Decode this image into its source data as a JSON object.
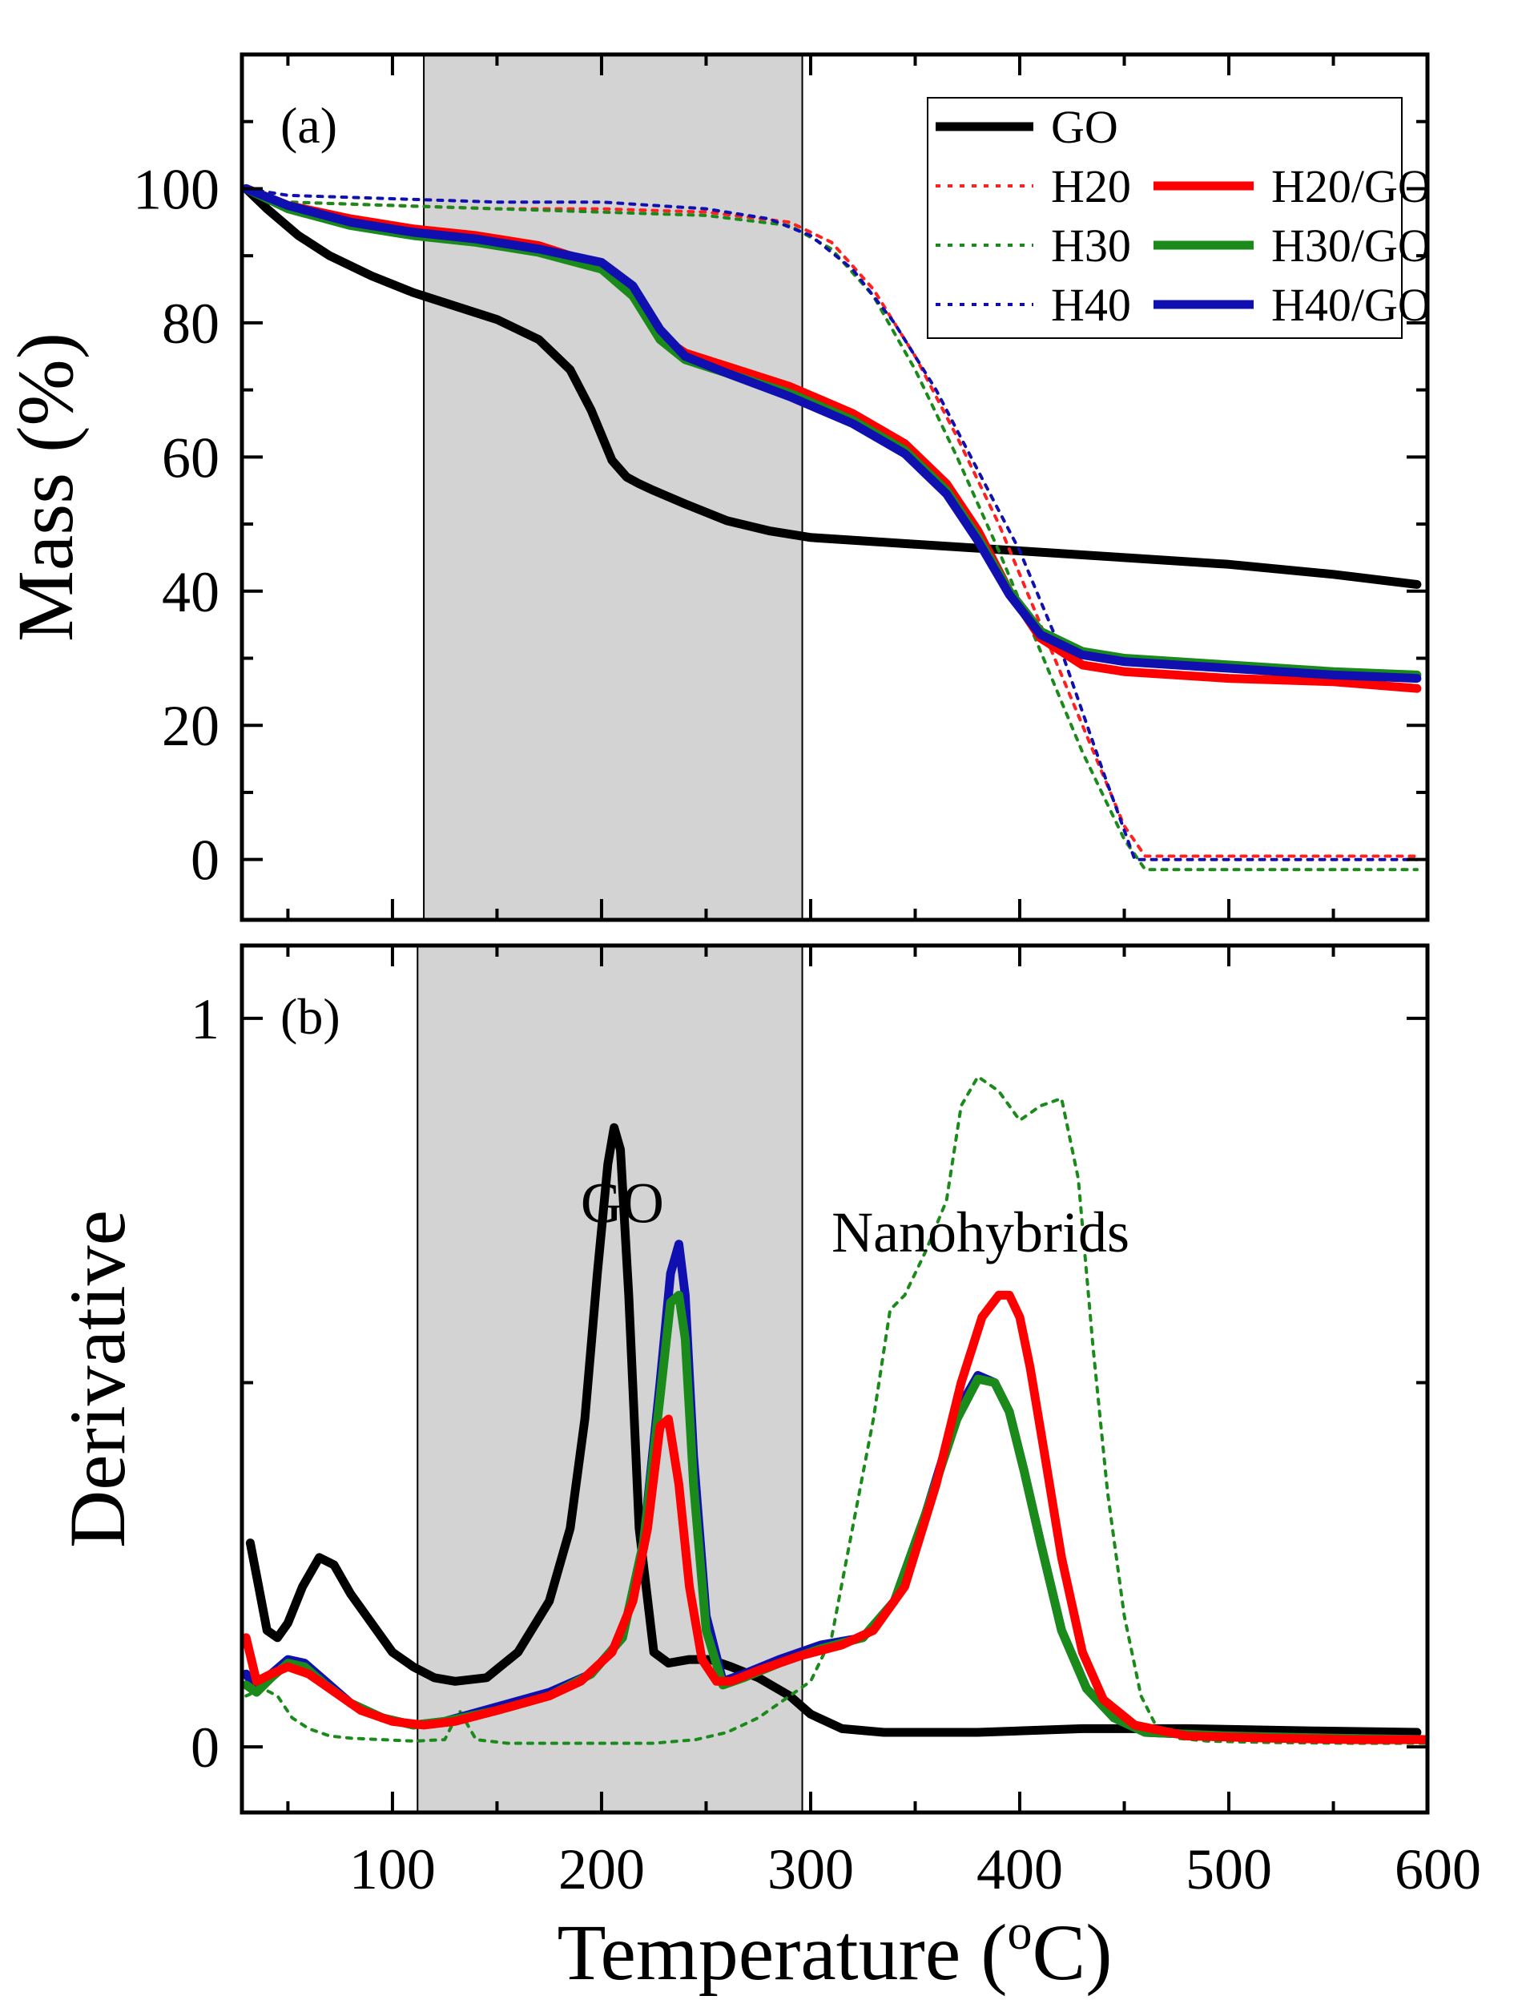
{
  "chart_data": [
    {
      "panel": "(a)",
      "type": "line",
      "xlabel": "Temperature (°C)",
      "ylabel": "Mass (%)",
      "xlim": [
        28,
        595
      ],
      "ylim": [
        -9,
        120
      ],
      "xticks": [
        100,
        200,
        300,
        400,
        500,
        600
      ],
      "yticks": [
        0,
        20,
        40,
        60,
        80,
        100
      ],
      "ytick_labels": [
        "0",
        "20",
        "40",
        "60",
        "80",
        "100"
      ],
      "grid": false,
      "legend_position": "top-right",
      "shaded_region": [
        115,
        296
      ],
      "series": [
        {
          "name": "GO",
          "color": "#000000",
          "style": "solid",
          "x": [
            30,
            40,
            55,
            70,
            90,
            110,
            130,
            150,
            170,
            185,
            195,
            205,
            212,
            218,
            225,
            240,
            260,
            280,
            300,
            350,
            400,
            450,
            500,
            550,
            590
          ],
          "y": [
            100,
            97,
            93,
            90,
            87,
            84.5,
            82.5,
            80.5,
            77.5,
            73,
            67,
            59.5,
            57,
            56,
            55,
            53,
            50.5,
            49,
            48,
            47,
            46,
            45,
            44,
            42.5,
            41
          ]
        },
        {
          "name": "H20",
          "color": "#ff2020",
          "style": "dotted",
          "x": [
            30,
            50,
            100,
            150,
            200,
            250,
            290,
            310,
            330,
            350,
            370,
            390,
            410,
            430,
            450,
            460,
            500,
            550,
            590
          ],
          "y": [
            100,
            98,
            97.5,
            97,
            97,
            96.5,
            95,
            92,
            85,
            75,
            63,
            50,
            35,
            20,
            5,
            0.5,
            0.5,
            0.5,
            0.5
          ]
        },
        {
          "name": "H30",
          "color": "#1a8a1a",
          "style": "dotted",
          "x": [
            30,
            50,
            100,
            150,
            200,
            250,
            290,
            310,
            330,
            350,
            370,
            390,
            410,
            430,
            450,
            460,
            500,
            550,
            590
          ],
          "y": [
            100,
            98,
            97.5,
            97,
            96.5,
            96,
            94.5,
            91,
            84,
            73,
            60,
            46,
            31,
            16,
            3,
            -1.5,
            -1.5,
            -1.5,
            -1.5
          ]
        },
        {
          "name": "H40",
          "color": "#1010b0",
          "style": "dotted",
          "x": [
            30,
            50,
            100,
            150,
            200,
            250,
            280,
            300,
            320,
            340,
            360,
            380,
            400,
            420,
            440,
            455,
            500,
            550,
            590
          ],
          "y": [
            100,
            99,
            98.5,
            98,
            98,
            97,
            95.5,
            93,
            88,
            80,
            70,
            58,
            46,
            31,
            13,
            0,
            0,
            0,
            0
          ]
        },
        {
          "name": "H20/GO",
          "color": "#ff0000",
          "style": "solid",
          "x": [
            30,
            50,
            80,
            110,
            140,
            170,
            200,
            215,
            228,
            240,
            260,
            290,
            320,
            345,
            365,
            380,
            395,
            410,
            430,
            450,
            500,
            550,
            590
          ],
          "y": [
            100,
            97.5,
            95.5,
            94,
            93,
            91.5,
            88.5,
            84,
            78,
            75.5,
            73.5,
            70.5,
            66.5,
            62,
            56,
            49,
            40,
            33,
            29,
            28,
            27,
            26.5,
            25.5
          ]
        },
        {
          "name": "H30/GO",
          "color": "#1a8a1a",
          "style": "solid",
          "x": [
            30,
            50,
            80,
            110,
            140,
            170,
            200,
            215,
            228,
            240,
            260,
            290,
            320,
            345,
            365,
            380,
            395,
            410,
            430,
            450,
            500,
            550,
            590
          ],
          "y": [
            100,
            97,
            94.5,
            93,
            92,
            90.5,
            88,
            84,
            77.5,
            74.5,
            72.5,
            69.5,
            65.5,
            61,
            55,
            48,
            40,
            34,
            31,
            30,
            29,
            28,
            27.5
          ]
        },
        {
          "name": "H40/GO",
          "color": "#1010b0",
          "style": "solid",
          "x": [
            30,
            50,
            80,
            110,
            140,
            170,
            200,
            215,
            228,
            240,
            260,
            290,
            320,
            345,
            365,
            380,
            395,
            410,
            430,
            450,
            500,
            550,
            590
          ],
          "y": [
            100,
            97.5,
            95,
            93.5,
            92.5,
            91,
            89,
            85.5,
            79,
            75,
            72.5,
            69,
            65,
            60.5,
            54.5,
            47.5,
            39.5,
            33.5,
            30.5,
            29.5,
            28.5,
            27.5,
            27
          ]
        }
      ],
      "legend": [
        {
          "name": "GO",
          "color": "#000000",
          "style": "solid"
        },
        {
          "name": "H20",
          "color": "#ff2020",
          "style": "dotted"
        },
        {
          "name": "H20/GO",
          "color": "#ff0000",
          "style": "solid"
        },
        {
          "name": "H30",
          "color": "#1a8a1a",
          "style": "dotted"
        },
        {
          "name": "H30/GO",
          "color": "#1a8a1a",
          "style": "solid"
        },
        {
          "name": "H40",
          "color": "#1010b0",
          "style": "dotted"
        },
        {
          "name": "H40/GO",
          "color": "#1010b0",
          "style": "solid"
        }
      ]
    },
    {
      "panel": "(b)",
      "type": "line",
      "xlabel": "Temperature (°C)",
      "ylabel": "Derivative",
      "xlim": [
        28,
        595
      ],
      "ylim": [
        -0.09,
        1.1
      ],
      "xticks": [
        100,
        200,
        300,
        400,
        500,
        600
      ],
      "xtick_labels": [
        "100",
        "200",
        "300",
        "400",
        "500",
        "600"
      ],
      "yticks": [
        0,
        1
      ],
      "ytick_labels": [
        "0",
        "1"
      ],
      "grid": false,
      "shaded_region": [
        112,
        296
      ],
      "annotations": [
        {
          "text": "GO",
          "x": 190,
          "y": 0.72
        },
        {
          "text": "Nanohybrids",
          "x": 310,
          "y": 0.68
        }
      ],
      "series": [
        {
          "name": "GO",
          "color": "#000000",
          "style": "solid",
          "x": [
            32,
            36,
            40,
            45,
            50,
            57,
            65,
            72,
            80,
            90,
            100,
            110,
            120,
            130,
            145,
            160,
            175,
            185,
            192,
            198,
            203,
            206,
            209,
            213,
            218,
            225,
            232,
            242,
            252,
            262,
            275,
            290,
            300,
            315,
            335,
            380,
            430,
            480,
            540,
            590
          ],
          "y": [
            0.28,
            0.22,
            0.16,
            0.15,
            0.17,
            0.22,
            0.26,
            0.25,
            0.21,
            0.17,
            0.13,
            0.11,
            0.095,
            0.09,
            0.095,
            0.13,
            0.2,
            0.3,
            0.45,
            0.65,
            0.8,
            0.85,
            0.82,
            0.62,
            0.3,
            0.13,
            0.115,
            0.12,
            0.12,
            0.11,
            0.095,
            0.07,
            0.045,
            0.025,
            0.02,
            0.02,
            0.025,
            0.025,
            0.022,
            0.02
          ]
        },
        {
          "name": "H30",
          "color": "#1a8a1a",
          "style": "dotted",
          "x": [
            30,
            38,
            45,
            52,
            60,
            70,
            80,
            95,
            110,
            125,
            132,
            140,
            155,
            175,
            200,
            225,
            245,
            260,
            275,
            290,
            300,
            310,
            320,
            330,
            338,
            345,
            355,
            365,
            372,
            380,
            390,
            400,
            410,
            420,
            428,
            435,
            442,
            450,
            458,
            465,
            475,
            490,
            520,
            560,
            595
          ],
          "y": [
            0.07,
            0.08,
            0.07,
            0.04,
            0.025,
            0.015,
            0.012,
            0.01,
            0.008,
            0.01,
            0.05,
            0.01,
            0.005,
            0.005,
            0.005,
            0.005,
            0.01,
            0.02,
            0.04,
            0.07,
            0.09,
            0.15,
            0.3,
            0.45,
            0.6,
            0.62,
            0.68,
            0.75,
            0.88,
            0.92,
            0.9,
            0.86,
            0.88,
            0.89,
            0.78,
            0.55,
            0.35,
            0.18,
            0.07,
            0.03,
            0.012,
            0.008,
            0.006,
            0.005,
            0.005
          ]
        },
        {
          "name": "H40/GO",
          "color": "#1010b0",
          "style": "solid",
          "x": [
            30,
            35,
            42,
            50,
            58,
            68,
            80,
            95,
            110,
            125,
            150,
            175,
            195,
            210,
            220,
            228,
            233,
            237,
            240,
            244,
            250,
            258,
            268,
            285,
            305,
            325,
            340,
            355,
            370,
            380,
            388,
            395,
            402,
            410,
            420,
            432,
            445,
            460,
            500,
            550,
            595
          ],
          "y": [
            0.1,
            0.08,
            0.1,
            0.12,
            0.115,
            0.09,
            0.06,
            0.04,
            0.03,
            0.035,
            0.055,
            0.075,
            0.1,
            0.15,
            0.28,
            0.5,
            0.65,
            0.69,
            0.62,
            0.4,
            0.18,
            0.09,
            0.1,
            0.12,
            0.14,
            0.15,
            0.2,
            0.32,
            0.46,
            0.51,
            0.5,
            0.46,
            0.38,
            0.28,
            0.16,
            0.08,
            0.04,
            0.02,
            0.015,
            0.012,
            0.01
          ]
        },
        {
          "name": "H30/GO",
          "color": "#1a8a1a",
          "style": "solid",
          "x": [
            30,
            35,
            42,
            50,
            58,
            68,
            80,
            95,
            110,
            125,
            150,
            175,
            195,
            210,
            220,
            228,
            233,
            237,
            240,
            244,
            250,
            258,
            268,
            285,
            305,
            325,
            340,
            355,
            370,
            380,
            388,
            395,
            402,
            410,
            420,
            432,
            445,
            460,
            500,
            550,
            595
          ],
          "y": [
            0.085,
            0.075,
            0.095,
            0.115,
            0.11,
            0.085,
            0.06,
            0.04,
            0.03,
            0.035,
            0.05,
            0.07,
            0.1,
            0.15,
            0.28,
            0.48,
            0.61,
            0.62,
            0.56,
            0.36,
            0.16,
            0.085,
            0.095,
            0.115,
            0.135,
            0.15,
            0.2,
            0.32,
            0.45,
            0.505,
            0.5,
            0.46,
            0.38,
            0.28,
            0.16,
            0.08,
            0.04,
            0.02,
            0.015,
            0.012,
            0.01
          ]
        },
        {
          "name": "H20/GO",
          "color": "#ff0000",
          "style": "solid",
          "x": [
            30,
            35,
            42,
            50,
            60,
            70,
            85,
            100,
            115,
            130,
            150,
            175,
            190,
            205,
            215,
            222,
            228,
            232,
            237,
            242,
            248,
            255,
            262,
            275,
            295,
            315,
            330,
            345,
            360,
            372,
            382,
            390,
            395,
            400,
            405,
            412,
            420,
            430,
            440,
            455,
            480,
            520,
            560,
            595
          ],
          "y": [
            0.15,
            0.09,
            0.1,
            0.11,
            0.1,
            0.08,
            0.05,
            0.035,
            0.03,
            0.035,
            0.05,
            0.07,
            0.09,
            0.13,
            0.2,
            0.3,
            0.44,
            0.45,
            0.36,
            0.22,
            0.12,
            0.09,
            0.09,
            0.105,
            0.125,
            0.14,
            0.16,
            0.22,
            0.36,
            0.5,
            0.59,
            0.62,
            0.62,
            0.59,
            0.52,
            0.4,
            0.26,
            0.13,
            0.065,
            0.03,
            0.015,
            0.012,
            0.01,
            0.01
          ]
        }
      ]
    }
  ]
}
